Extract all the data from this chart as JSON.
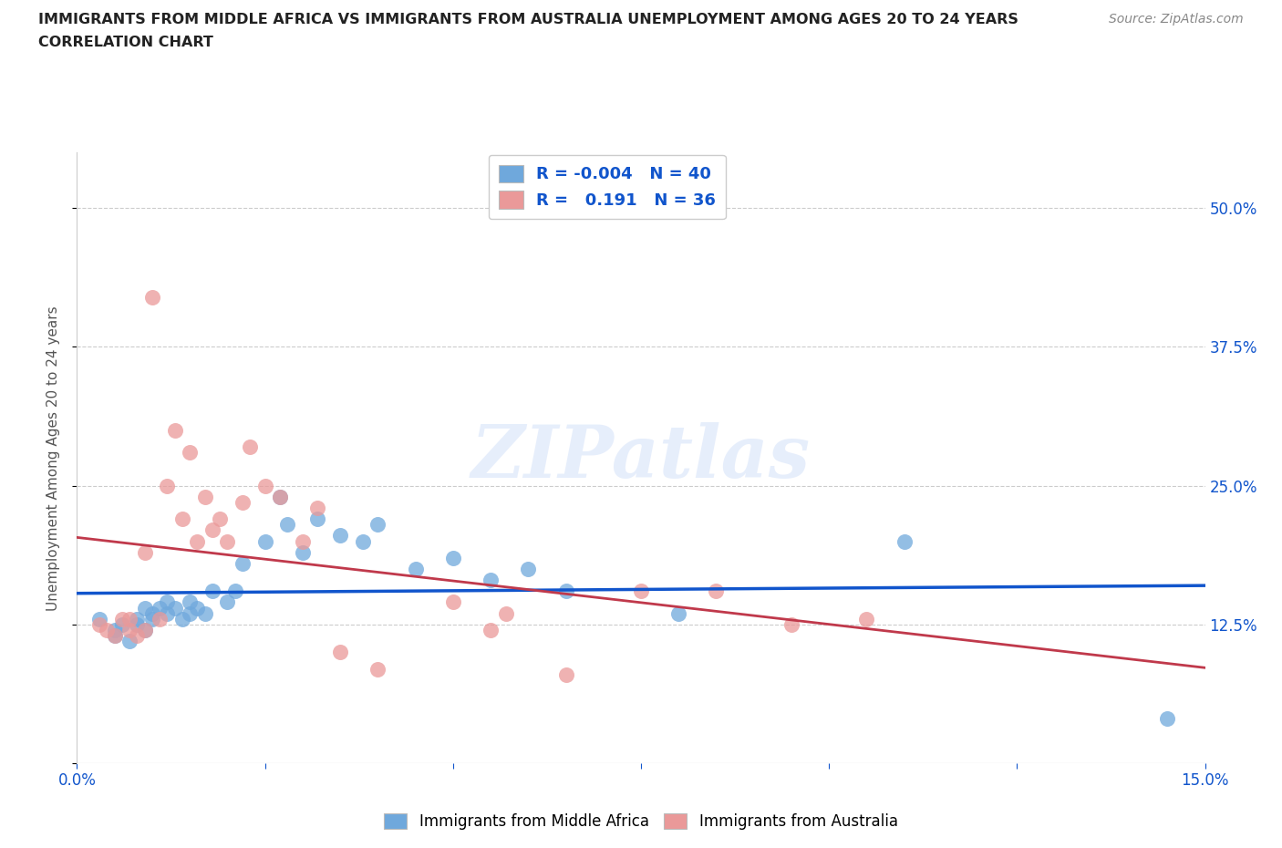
{
  "title_line1": "IMMIGRANTS FROM MIDDLE AFRICA VS IMMIGRANTS FROM AUSTRALIA UNEMPLOYMENT AMONG AGES 20 TO 24 YEARS",
  "title_line2": "CORRELATION CHART",
  "source_text": "Source: ZipAtlas.com",
  "ylabel": "Unemployment Among Ages 20 to 24 years",
  "xlim": [
    0.0,
    0.15
  ],
  "ylim": [
    0.0,
    0.55
  ],
  "yticks": [
    0.0,
    0.125,
    0.25,
    0.375,
    0.5
  ],
  "ytick_labels": [
    "",
    "12.5%",
    "25.0%",
    "37.5%",
    "50.0%"
  ],
  "xticks": [
    0.0,
    0.025,
    0.05,
    0.075,
    0.1,
    0.125,
    0.15
  ],
  "xtick_labels": [
    "0.0%",
    "",
    "",
    "",
    "",
    "",
    "15.0%"
  ],
  "color_blue": "#6fa8dc",
  "color_pink": "#ea9999",
  "line_blue": "#1155cc",
  "line_pink": "#c0394b",
  "text_color": "#1155cc",
  "r_blue": -0.004,
  "n_blue": 40,
  "r_pink": 0.191,
  "n_pink": 36,
  "watermark": "ZIPatlas",
  "blue_x": [
    0.003,
    0.005,
    0.005,
    0.006,
    0.007,
    0.008,
    0.008,
    0.009,
    0.009,
    0.01,
    0.01,
    0.011,
    0.012,
    0.012,
    0.013,
    0.014,
    0.015,
    0.015,
    0.016,
    0.017,
    0.018,
    0.02,
    0.021,
    0.022,
    0.025,
    0.027,
    0.028,
    0.03,
    0.032,
    0.035,
    0.038,
    0.04,
    0.045,
    0.05,
    0.055,
    0.06,
    0.065,
    0.08,
    0.11,
    0.145
  ],
  "blue_y": [
    0.13,
    0.12,
    0.115,
    0.125,
    0.11,
    0.13,
    0.125,
    0.14,
    0.12,
    0.135,
    0.13,
    0.14,
    0.135,
    0.145,
    0.14,
    0.13,
    0.135,
    0.145,
    0.14,
    0.135,
    0.155,
    0.145,
    0.155,
    0.18,
    0.2,
    0.24,
    0.215,
    0.19,
    0.22,
    0.205,
    0.2,
    0.215,
    0.175,
    0.185,
    0.165,
    0.175,
    0.155,
    0.135,
    0.2,
    0.04
  ],
  "pink_x": [
    0.003,
    0.004,
    0.005,
    0.006,
    0.007,
    0.007,
    0.008,
    0.009,
    0.009,
    0.01,
    0.011,
    0.012,
    0.013,
    0.014,
    0.015,
    0.016,
    0.017,
    0.018,
    0.019,
    0.02,
    0.022,
    0.023,
    0.025,
    0.027,
    0.03,
    0.032,
    0.035,
    0.04,
    0.05,
    0.055,
    0.057,
    0.065,
    0.075,
    0.085,
    0.095,
    0.105
  ],
  "pink_y": [
    0.125,
    0.12,
    0.115,
    0.13,
    0.12,
    0.13,
    0.115,
    0.12,
    0.19,
    0.42,
    0.13,
    0.25,
    0.3,
    0.22,
    0.28,
    0.2,
    0.24,
    0.21,
    0.22,
    0.2,
    0.235,
    0.285,
    0.25,
    0.24,
    0.2,
    0.23,
    0.1,
    0.085,
    0.145,
    0.12,
    0.135,
    0.08,
    0.155,
    0.155,
    0.125,
    0.13
  ]
}
